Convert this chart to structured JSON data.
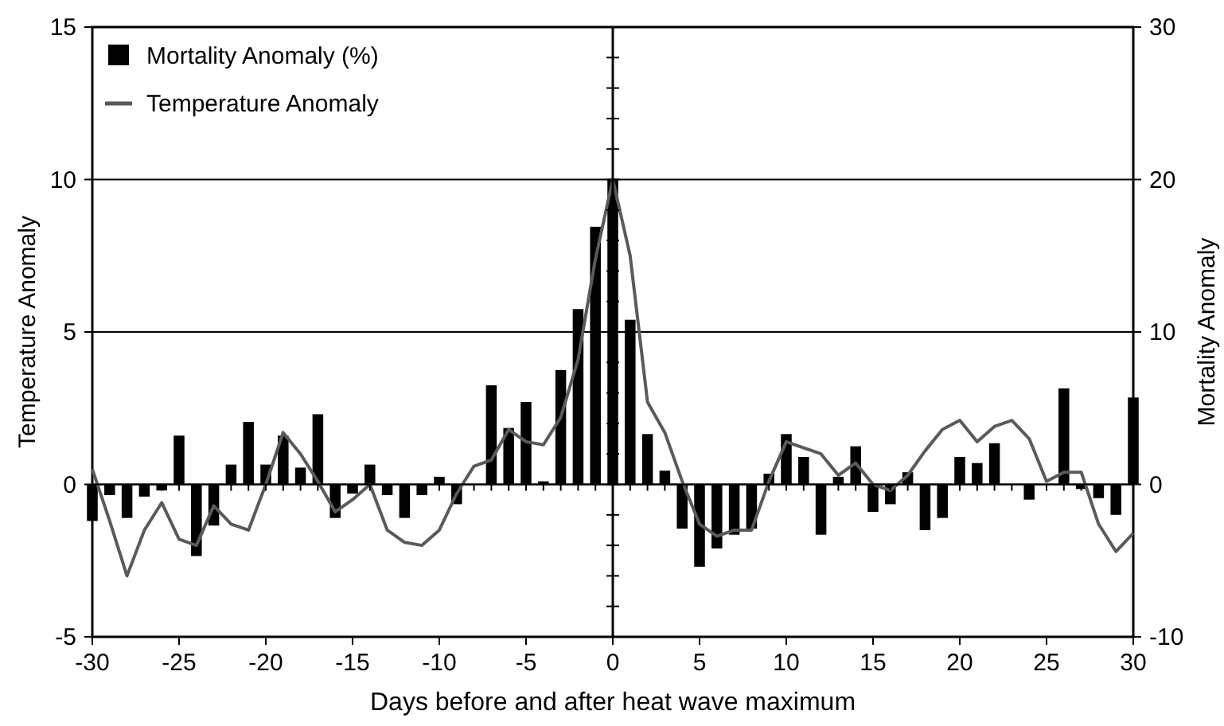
{
  "chart_data": {
    "type": "bar",
    "xlabel": "Days before and after heat wave maximum",
    "ylabel": "Temperature Anomaly",
    "y2label": "Mortality Anomaly",
    "x": [
      -30,
      -29,
      -28,
      -27,
      -26,
      -25,
      -24,
      -23,
      -22,
      -21,
      -20,
      -19,
      -18,
      -17,
      -16,
      -15,
      -14,
      -13,
      -12,
      -11,
      -10,
      -9,
      -8,
      -7,
      -6,
      -5,
      -4,
      -3,
      -2,
      -1,
      0,
      1,
      2,
      3,
      4,
      5,
      6,
      7,
      8,
      9,
      10,
      11,
      12,
      13,
      14,
      15,
      16,
      17,
      18,
      19,
      20,
      21,
      22,
      23,
      24,
      25,
      26,
      27,
      28,
      29,
      30
    ],
    "series": [
      {
        "name": "Mortality Anomaly (%)",
        "axis": "y2",
        "color": "#000000",
        "values": [
          -2.4,
          -0.7,
          -2.2,
          -0.8,
          -0.4,
          3.2,
          -4.7,
          -2.7,
          1.3,
          4.1,
          1.3,
          3.2,
          1.1,
          4.6,
          -2.2,
          -0.6,
          1.3,
          -0.7,
          -2.2,
          -0.7,
          0.5,
          -1.3,
          0,
          6.5,
          3.7,
          5.4,
          0.2,
          7.5,
          11.5,
          16.9,
          20.0,
          10.8,
          3.3,
          0.9,
          -2.9,
          -5.4,
          -4.2,
          -3.3,
          -2.9,
          0.7,
          3.3,
          1.8,
          -3.3,
          0.5,
          2.5,
          -1.8,
          -1.3,
          0.8,
          -3.0,
          -2.2,
          1.8,
          1.4,
          2.7,
          0,
          -1.0,
          0,
          6.3,
          -0.3,
          -0.9,
          -2.0,
          5.7
        ]
      },
      {
        "name": "Temperature Anomaly",
        "type": "line",
        "axis": "y",
        "color": "#5a5a5a",
        "values": [
          0.5,
          -1.2,
          -3.0,
          -1.5,
          -0.6,
          -1.8,
          -2.0,
          -0.7,
          -1.3,
          -1.5,
          0.0,
          1.7,
          1.0,
          0.1,
          -0.9,
          -0.5,
          0,
          -1.5,
          -1.9,
          -2.0,
          -1.5,
          -0.3,
          0.6,
          0.8,
          1.8,
          1.4,
          1.3,
          2.2,
          4.1,
          7.4,
          10.0,
          7.5,
          2.7,
          1.7,
          0.1,
          -1.3,
          -1.7,
          -1.5,
          -1.5,
          0.1,
          1.4,
          1.2,
          1.0,
          0.3,
          0.7,
          0.0,
          -0.2,
          0.3,
          1.1,
          1.8,
          2.1,
          1.4,
          1.9,
          2.1,
          1.5,
          0.1,
          0.4,
          0.4,
          -1.3,
          -2.2,
          -1.6
        ]
      }
    ],
    "xlim": [
      -30,
      30
    ],
    "xticks": [
      -30,
      -25,
      -20,
      -15,
      -10,
      -5,
      0,
      5,
      10,
      15,
      20,
      25,
      30
    ],
    "ylim": [
      -5,
      15
    ],
    "yticks": [
      -5,
      0,
      5,
      10,
      15
    ],
    "y2lim": [
      -10,
      30
    ],
    "y2ticks": [
      -10,
      0,
      10,
      20,
      30
    ],
    "grid": "y",
    "legend": "top left",
    "line_style": "solid",
    "marker": "none"
  }
}
